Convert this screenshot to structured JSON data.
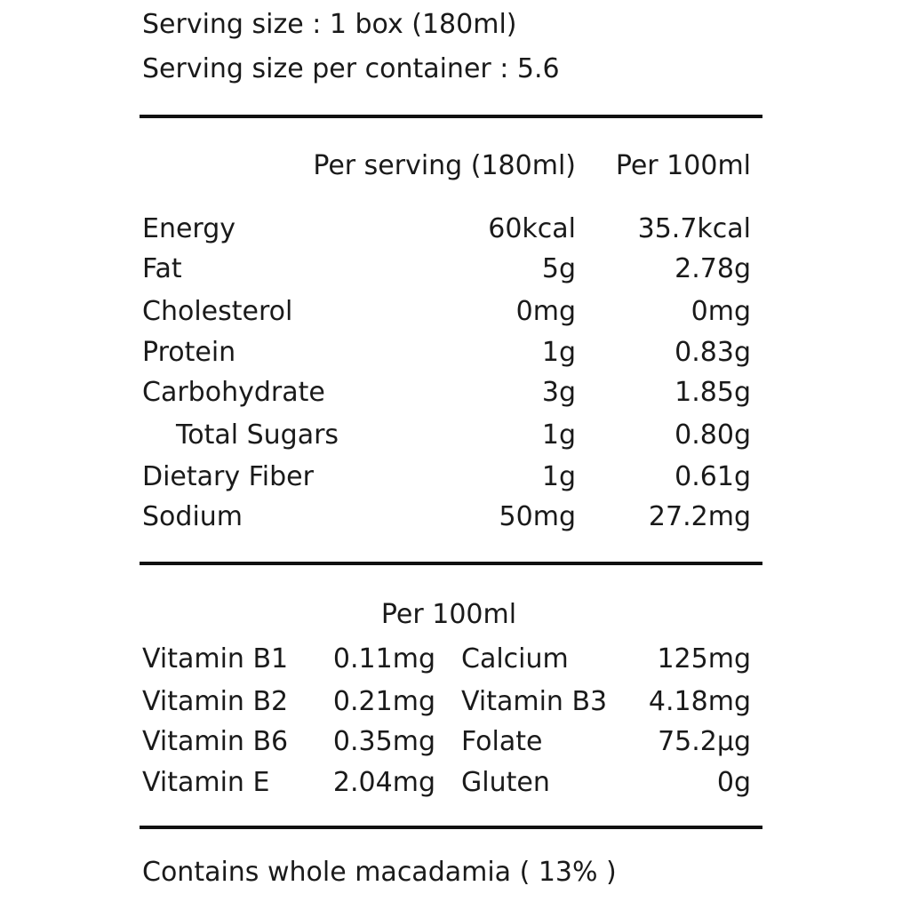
{
  "serving": {
    "size": "Serving size : 1 box (180ml)",
    "per_container": "Serving size per container : 5.6"
  },
  "nutrition": {
    "headers": [
      "Per serving (180ml)",
      "Per 100ml"
    ],
    "rows": [
      {
        "label": "Energy",
        "serving": "60kcal",
        "per100": "35.7kcal"
      },
      {
        "label": "Fat",
        "serving": "5g",
        "per100": "2.78g"
      },
      {
        "label": "Cholesterol",
        "serving": "0mg",
        "per100": "0mg"
      },
      {
        "label": "Protein",
        "serving": "1g",
        "per100": "0.83g"
      },
      {
        "label": "Carbohydrate",
        "serving": "3g",
        "per100": "1.85g"
      },
      {
        "label": "Total Sugars",
        "serving": "1g",
        "per100": "0.80g"
      },
      {
        "label": "Dietary Fiber",
        "serving": "1g",
        "per100": "0.61g"
      },
      {
        "label": "Sodium",
        "serving": "50mg",
        "per100": "27.2mg"
      }
    ]
  },
  "vitamins": {
    "header": "Per 100ml",
    "rows": [
      {
        "l1": "Vitamin B1",
        "v1": "0.11mg",
        "l2": "Calcium",
        "v2": "125mg"
      },
      {
        "l1": "Vitamin B2",
        "v1": "0.21mg",
        "l2": "Vitamin B3",
        "v2": "4.18mg"
      },
      {
        "l1": "Vitamin B6",
        "v1": "0.35mg",
        "l2": "Folate",
        "v2": "75.2µg"
      },
      {
        "l1": "Vitamin E",
        "v1": "2.04mg",
        "l2": "Gluten",
        "v2": "0g"
      }
    ]
  },
  "footer": "Contains whole macadamia ( 13% )"
}
